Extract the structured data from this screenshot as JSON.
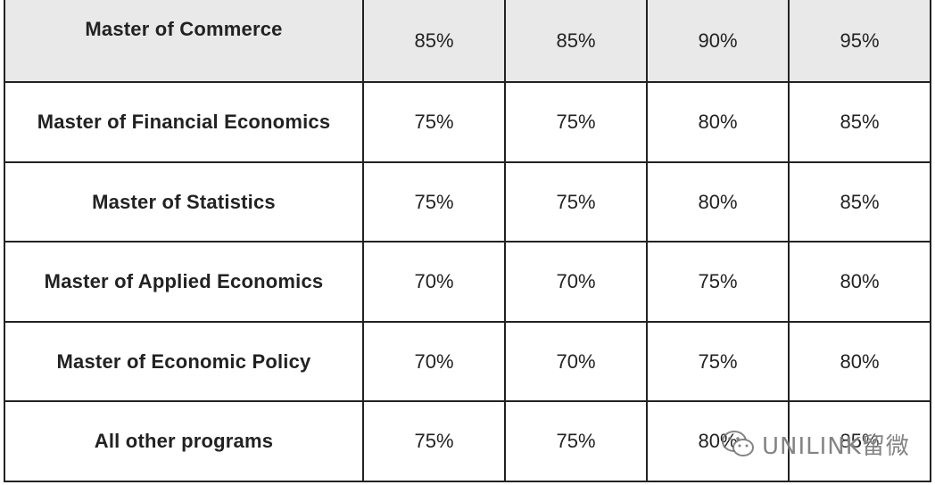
{
  "table": {
    "rows": [
      {
        "program": "Master of Commerce",
        "values": [
          "85%",
          "85%",
          "90%",
          "95%"
        ],
        "highlighted": true
      },
      {
        "program": "Master of Financial Economics",
        "values": [
          "75%",
          "75%",
          "80%",
          "85%"
        ]
      },
      {
        "program": "Master of Statistics",
        "values": [
          "75%",
          "75%",
          "80%",
          "85%"
        ]
      },
      {
        "program": "Master of Applied Economics",
        "values": [
          "70%",
          "70%",
          "75%",
          "80%"
        ]
      },
      {
        "program": "Master of Economic Policy",
        "values": [
          "70%",
          "70%",
          "75%",
          "80%"
        ]
      },
      {
        "program": "All other programs",
        "values": [
          "75%",
          "75%",
          "80%",
          "85%"
        ]
      }
    ],
    "header_row_bg": "#e9e9e9",
    "border_color": "#222222"
  },
  "watermark": {
    "text": "UNILINK留微",
    "icon": "wechat-icon"
  }
}
